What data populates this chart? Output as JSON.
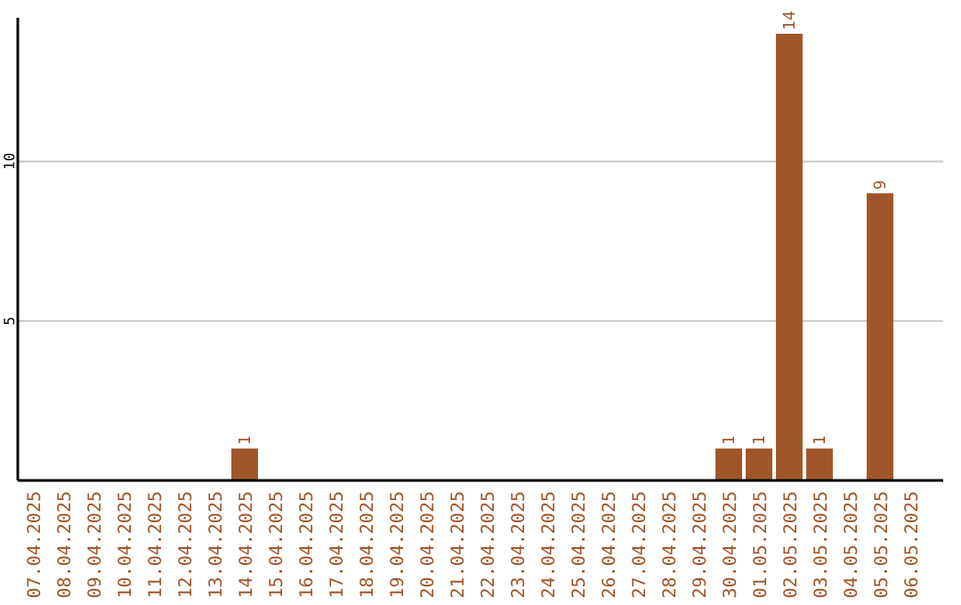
{
  "chart_data": {
    "type": "bar",
    "categories": [
      "07.04.2025",
      "08.04.2025",
      "09.04.2025",
      "10.04.2025",
      "11.04.2025",
      "12.04.2025",
      "13.04.2025",
      "14.04.2025",
      "15.04.2025",
      "16.04.2025",
      "17.04.2025",
      "18.04.2025",
      "19.04.2025",
      "20.04.2025",
      "21.04.2025",
      "22.04.2025",
      "23.04.2025",
      "24.04.2025",
      "25.04.2025",
      "26.04.2025",
      "27.04.2025",
      "28.04.2025",
      "29.04.2025",
      "30.04.2025",
      "01.05.2025",
      "02.05.2025",
      "03.05.2025",
      "04.05.2025",
      "05.05.2025",
      "06.05.2025"
    ],
    "values": [
      0,
      0,
      0,
      0,
      0,
      0,
      0,
      1,
      0,
      0,
      0,
      0,
      0,
      0,
      0,
      0,
      0,
      0,
      0,
      0,
      0,
      0,
      0,
      1,
      1,
      14,
      1,
      0,
      9,
      0
    ],
    "value_labels": [
      null,
      null,
      null,
      null,
      null,
      null,
      null,
      "1",
      null,
      null,
      null,
      null,
      null,
      null,
      null,
      null,
      null,
      null,
      null,
      null,
      null,
      null,
      null,
      "1",
      "1",
      "14",
      "1",
      null,
      "9",
      null
    ],
    "color": "#a0562a",
    "ylim": [
      0,
      14.5
    ],
    "yticks": [
      5,
      10
    ],
    "grid": "y"
  }
}
